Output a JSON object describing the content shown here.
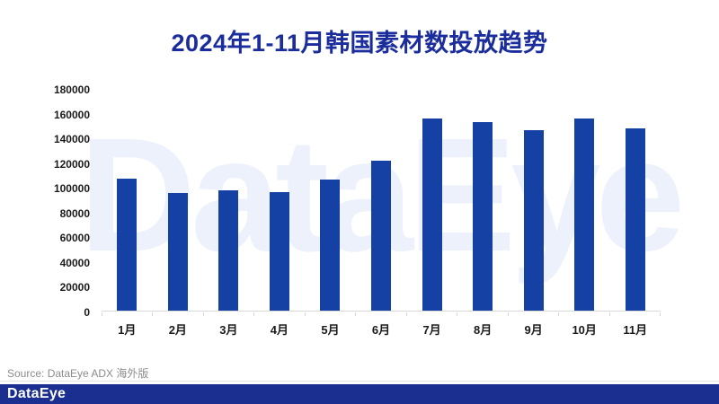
{
  "title": "2024年1-11月韩国素材数投放趋势",
  "watermark": "DataEye",
  "source_text": "Source: DataEye ADX 海外版",
  "footer": {
    "logo_text": "DataEye"
  },
  "colors": {
    "bar": "#1441a3",
    "title": "#1b2d9c",
    "label": "#1a1a1a",
    "axis_line": "#d9d9d9",
    "watermark": "#edf1fb",
    "source": "#8c8c8c",
    "footer_bg": "#1b2f90"
  },
  "chart_data": {
    "type": "bar",
    "title": "2024年1-11月韩国素材数投放趋势",
    "categories": [
      "1月",
      "2月",
      "3月",
      "4月",
      "5月",
      "6月",
      "7月",
      "8月",
      "9月",
      "10月",
      "11月"
    ],
    "values": [
      106800,
      95500,
      97700,
      96500,
      106400,
      121900,
      155800,
      152900,
      146600,
      156300,
      147800
    ],
    "xlabel": "",
    "ylabel": "",
    "ylim": [
      0,
      180000
    ],
    "ytick_step": 20000,
    "yticks": [
      0,
      20000,
      40000,
      60000,
      80000,
      100000,
      120000,
      140000,
      160000,
      180000
    ],
    "grid": false,
    "legend": false,
    "bar_color": "#1441a3"
  }
}
